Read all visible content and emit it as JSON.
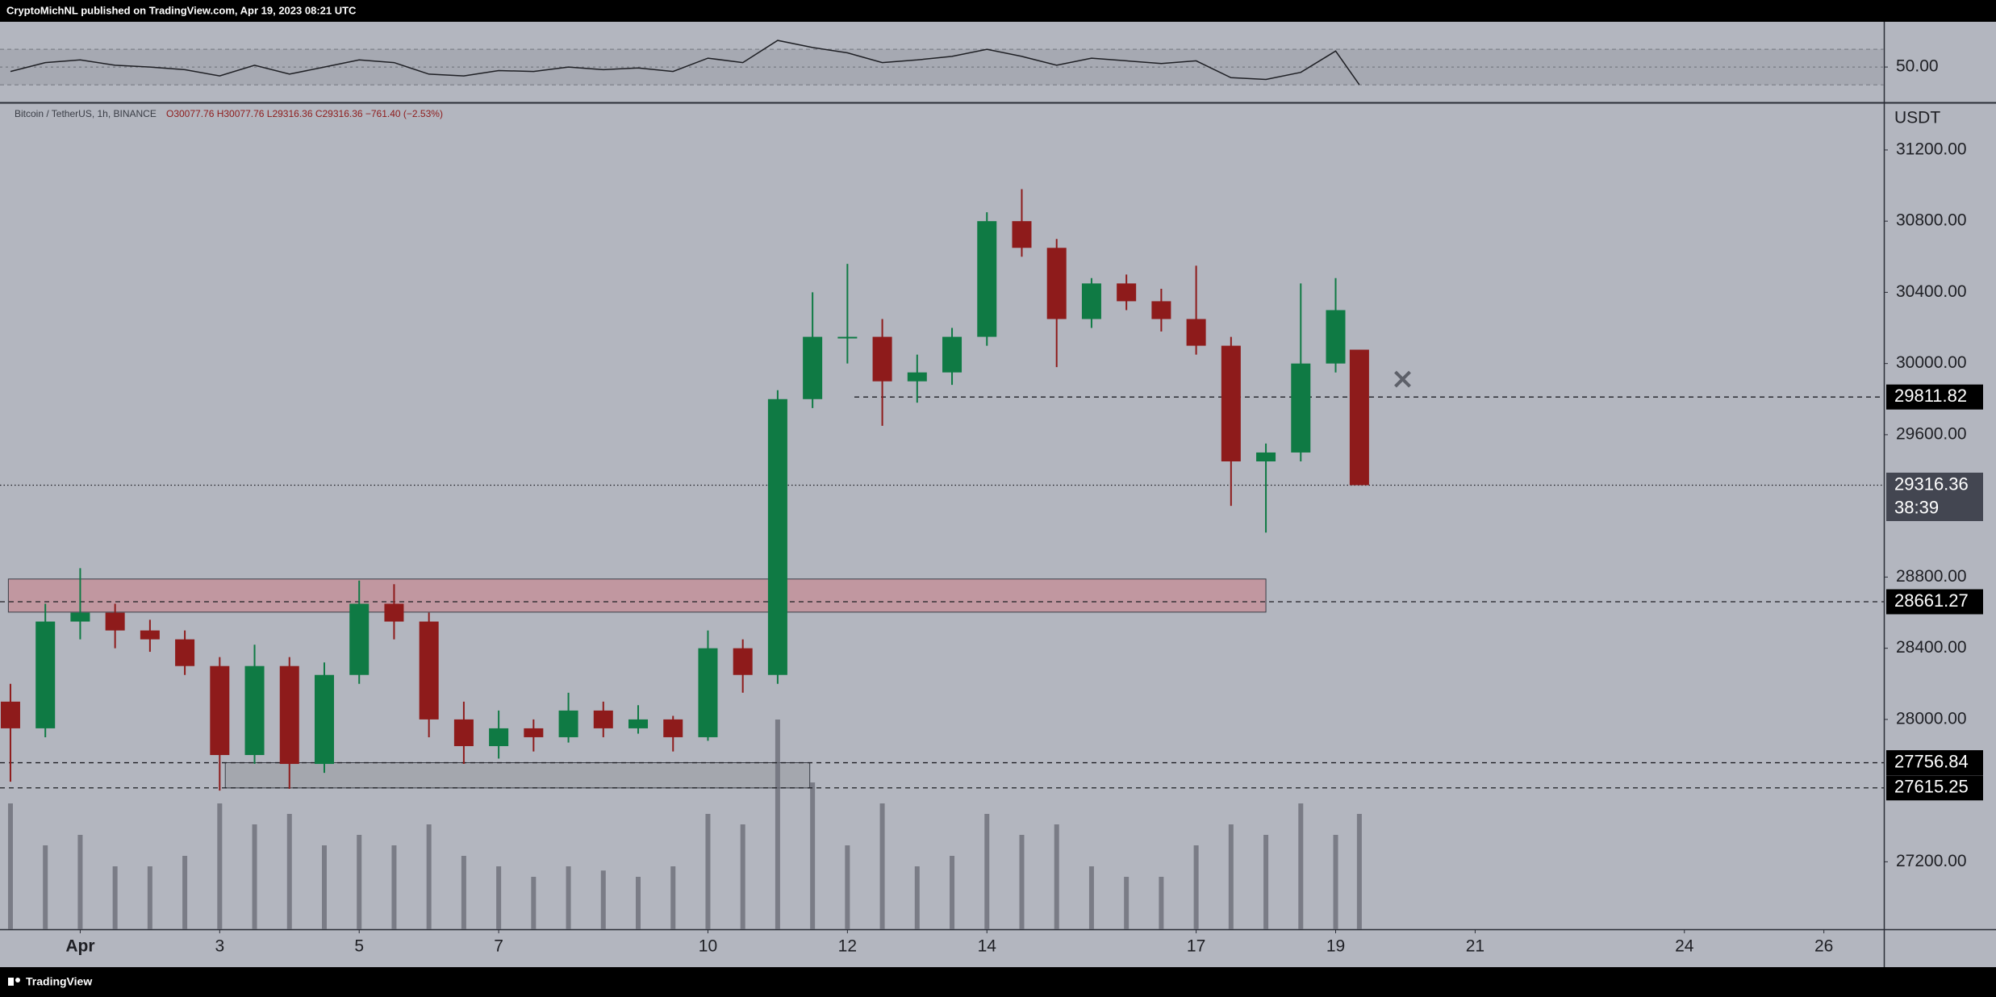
{
  "header": "CryptoMichNL published on TradingView.com, Apr 19, 2023 08:21 UTC",
  "footer": "TradingView",
  "chart_data": {
    "type": "candlestick",
    "subtitle": "Bitcoin / TetherUS, 1h, BINANCE",
    "ohlc_text": "O30077.76 H30077.76 L29316.36 C29316.36 −761.40 (−2.53%)",
    "currency": "USDT",
    "x": [
      0,
      0.5,
      1,
      1.5,
      2,
      2.5,
      3,
      3.5,
      4,
      4.5,
      5,
      5.5,
      6,
      6.5,
      7,
      7.5,
      8,
      8.5,
      9,
      9.5,
      10,
      10.5,
      11,
      11.5,
      12,
      12.5,
      13,
      13.5,
      14,
      14.5,
      15,
      15.5,
      16,
      16.5,
      17,
      17.5,
      18,
      18.5,
      19,
      19.34
    ],
    "open": [
      28100,
      27950,
      28550,
      28600,
      28500,
      28450,
      28300,
      27800,
      28300,
      27750,
      28250,
      28650,
      28550,
      28000,
      27850,
      27950,
      27900,
      28050,
      27950,
      28000,
      27900,
      28400,
      28250,
      29800,
      30150,
      30150,
      29900,
      29950,
      30150,
      30800,
      30650,
      30250,
      30450,
      30350,
      30250,
      30100,
      29450,
      29500,
      30000,
      30077.76
    ],
    "high": [
      28200,
      28650,
      28850,
      28650,
      28560,
      28500,
      28350,
      28420,
      28350,
      28320,
      28780,
      28760,
      28600,
      28100,
      28050,
      28000,
      28150,
      28100,
      28080,
      28020,
      28500,
      28450,
      29850,
      30400,
      30560,
      30250,
      30050,
      30200,
      30850,
      30980,
      30700,
      30480,
      30500,
      30420,
      30550,
      30150,
      29550,
      30450,
      30480,
      30077.76
    ],
    "low": [
      27650,
      27900,
      28450,
      28400,
      28380,
      28250,
      27600,
      27750,
      27610,
      27700,
      28200,
      28450,
      27900,
      27750,
      27780,
      27820,
      27870,
      27900,
      27920,
      27820,
      27880,
      28150,
      28200,
      29750,
      30000,
      29650,
      29780,
      29880,
      30100,
      30600,
      29980,
      30200,
      30300,
      30180,
      30050,
      29200,
      29050,
      29450,
      29950,
      29316.36
    ],
    "close": [
      27950,
      28550,
      28600,
      28500,
      28450,
      28300,
      27800,
      28300,
      27750,
      28250,
      28650,
      28550,
      28000,
      27850,
      27950,
      27900,
      28050,
      27950,
      28000,
      27900,
      28400,
      28250,
      29800,
      30150,
      30150,
      29900,
      29950,
      30150,
      30800,
      30650,
      30250,
      30450,
      30350,
      30250,
      30100,
      29450,
      29500,
      30000,
      30300,
      29316.36
    ],
    "up_color": "#0f7a44",
    "down_color": "#8e1b1b",
    "volume": [
      60,
      40,
      45,
      30,
      30,
      35,
      60,
      50,
      55,
      40,
      45,
      40,
      50,
      35,
      30,
      25,
      30,
      28,
      25,
      30,
      55,
      50,
      100,
      70,
      40,
      60,
      30,
      35,
      55,
      45,
      50,
      30,
      25,
      25,
      40,
      50,
      45,
      60,
      45,
      55
    ],
    "volume_color": "#6b6e78",
    "xlim": [
      -0.15,
      26.86
    ],
    "xticks": [
      {
        "value": 1,
        "label": "Apr"
      },
      3,
      5,
      7,
      10,
      12,
      14,
      17,
      19,
      21,
      24,
      26
    ],
    "ylim": [
      26821,
      31458
    ],
    "yticks": [
      {
        "value": 27200,
        "label": "27200.00"
      },
      {
        "value": 28000,
        "label": "28000.00"
      },
      {
        "value": 28400,
        "label": "28400.00"
      },
      {
        "value": 28800,
        "label": "28800.00"
      },
      {
        "value": 29600,
        "label": "29600.00"
      },
      {
        "value": 30000,
        "label": "30000.00"
      },
      {
        "value": 30400,
        "label": "30400.00"
      },
      {
        "value": 30800,
        "label": "30800.00"
      },
      {
        "value": 31200,
        "label": "31200.00"
      }
    ],
    "grid": false,
    "price_levels": [
      {
        "value": 29811.82,
        "start": 12.1
      },
      {
        "value": 29316.36,
        "countdown": "38:39",
        "current": true
      },
      {
        "value": 28661.27
      },
      {
        "value": 27756.84
      },
      {
        "value": 27615.25
      }
    ],
    "zones": [
      {
        "x": [
          -0.03,
          18.0
        ],
        "y": [
          28603,
          28789
        ],
        "color": "#c9828c"
      },
      {
        "x": [
          3.08,
          11.46
        ],
        "y": [
          27615,
          27757
        ],
        "color": "#9a9ca4"
      }
    ],
    "marker": {
      "x": 19.96,
      "y": 29912
    },
    "rsi": {
      "values": [
        45,
        55,
        58,
        52,
        50,
        47,
        40,
        52,
        42,
        50,
        58,
        55,
        42,
        40,
        46,
        45,
        50,
        47,
        49,
        45,
        60,
        55,
        80,
        72,
        66,
        55,
        58,
        62,
        70,
        62,
        52,
        60,
        57,
        54,
        57,
        38,
        36,
        44,
        68,
        30
      ],
      "ylim": [
        11,
        101
      ],
      "yticks": [
        {
          "value": 50,
          "label": "50.00"
        }
      ],
      "bands": [
        30,
        70
      ],
      "color": "#1e1f24"
    }
  }
}
